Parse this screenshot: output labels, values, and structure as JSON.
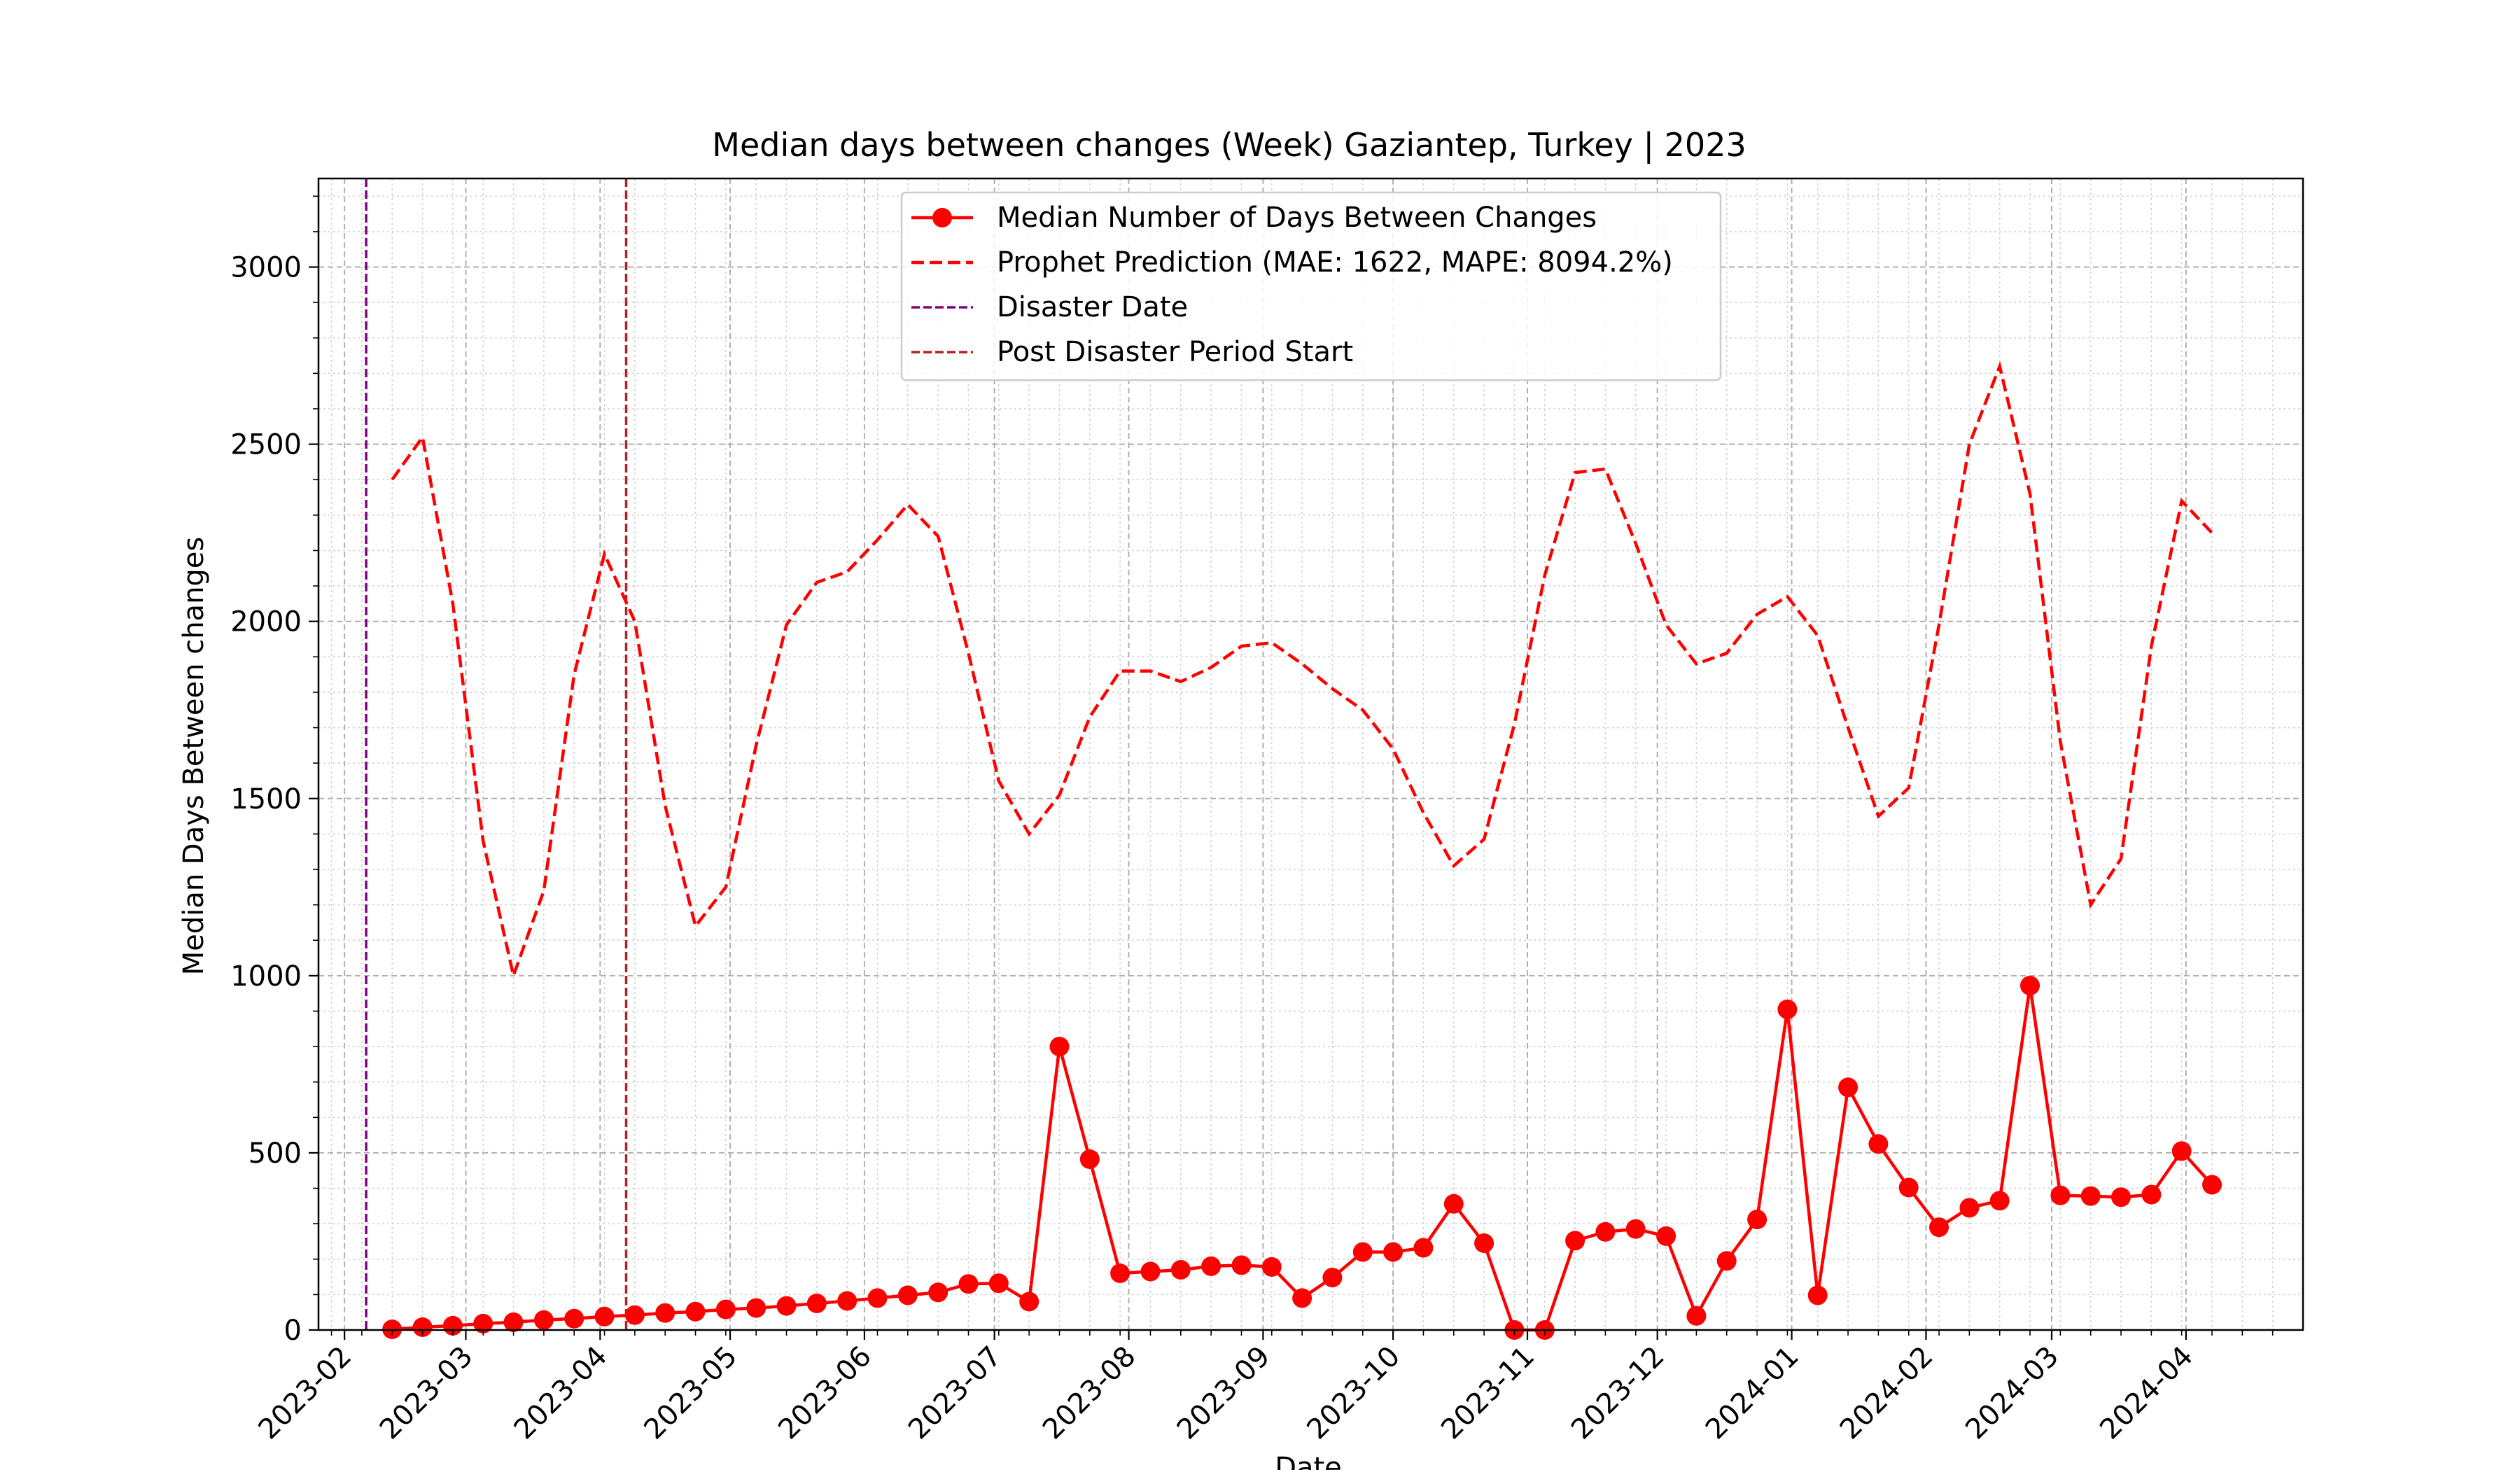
{
  "chart_data": {
    "type": "line",
    "title": "Median days between changes (Week) Gaziantep, Turkey | 2023",
    "xlabel": "Date",
    "ylabel": "Median Days Between changes",
    "x_axis": {
      "type": "date",
      "range": [
        "2023-01-26",
        "2024-04-28"
      ]
    },
    "ylim": [
      0,
      3250
    ],
    "y_ticks": [
      0,
      500,
      1000,
      1500,
      2000,
      2500,
      3000
    ],
    "x_ticks": [
      "2023-02",
      "2023-03",
      "2023-04",
      "2023-05",
      "2023-06",
      "2023-07",
      "2023-08",
      "2023-09",
      "2023-10",
      "2023-11",
      "2023-12",
      "2024-01",
      "2024-02",
      "2024-03",
      "2024-04"
    ],
    "grid": true,
    "legend_position": "upper center",
    "series": [
      {
        "name": "Median Number of Days Between Changes",
        "color": "#ff0000",
        "style": "solid-with-markers",
        "x": [
          "2023-02-12",
          "2023-02-19",
          "2023-02-26",
          "2023-03-05",
          "2023-03-12",
          "2023-03-19",
          "2023-03-26",
          "2023-04-02",
          "2023-04-09",
          "2023-04-16",
          "2023-04-23",
          "2023-04-30",
          "2023-05-07",
          "2023-05-14",
          "2023-05-21",
          "2023-05-28",
          "2023-06-04",
          "2023-06-11",
          "2023-06-18",
          "2023-06-25",
          "2023-07-02",
          "2023-07-09",
          "2023-07-16",
          "2023-07-23",
          "2023-07-30",
          "2023-08-06",
          "2023-08-13",
          "2023-08-20",
          "2023-08-27",
          "2023-09-03",
          "2023-09-10",
          "2023-09-17",
          "2023-09-24",
          "2023-10-01",
          "2023-10-08",
          "2023-10-15",
          "2023-10-22",
          "2023-10-29",
          "2023-11-05",
          "2023-11-12",
          "2023-11-19",
          "2023-11-26",
          "2023-12-03",
          "2023-12-10",
          "2023-12-17",
          "2023-12-24",
          "2023-12-31",
          "2024-01-07",
          "2024-01-14",
          "2024-01-21",
          "2024-01-28",
          "2024-02-04",
          "2024-02-11",
          "2024-02-18",
          "2024-02-25",
          "2024-03-03",
          "2024-03-10",
          "2024-03-17",
          "2024-03-24",
          "2024-03-31",
          "2024-04-07"
        ],
        "values": [
          2,
          8,
          12,
          18,
          22,
          28,
          32,
          38,
          42,
          48,
          52,
          58,
          62,
          68,
          75,
          82,
          90,
          98,
          106,
          130,
          132,
          80,
          800,
          482,
          160,
          165,
          170,
          180,
          183,
          178,
          90,
          148,
          220,
          220,
          232,
          356,
          245,
          0,
          0,
          252,
          277,
          285,
          265,
          40,
          195,
          312,
          905,
          98,
          685,
          525,
          402,
          290,
          345,
          365,
          972,
          380,
          378,
          375,
          382,
          505,
          410
        ]
      },
      {
        "name": "Prophet Prediction (MAE: 1622, MAPE: 8094.2%)",
        "color": "#ff0000",
        "style": "dashed",
        "x": [
          "2023-02-12",
          "2023-02-19",
          "2023-02-26",
          "2023-03-05",
          "2023-03-12",
          "2023-03-19",
          "2023-03-26",
          "2023-04-02",
          "2023-04-09",
          "2023-04-16",
          "2023-04-23",
          "2023-04-30",
          "2023-05-07",
          "2023-05-14",
          "2023-05-21",
          "2023-05-28",
          "2023-06-04",
          "2023-06-11",
          "2023-06-18",
          "2023-06-25",
          "2023-07-02",
          "2023-07-09",
          "2023-07-16",
          "2023-07-23",
          "2023-07-30",
          "2023-08-06",
          "2023-08-13",
          "2023-08-20",
          "2023-08-27",
          "2023-09-03",
          "2023-09-10",
          "2023-09-17",
          "2023-09-24",
          "2023-10-01",
          "2023-10-08",
          "2023-10-15",
          "2023-10-22",
          "2023-10-29",
          "2023-11-05",
          "2023-11-12",
          "2023-11-19",
          "2023-11-26",
          "2023-12-03",
          "2023-12-10",
          "2023-12-17",
          "2023-12-24",
          "2023-12-31",
          "2024-01-07",
          "2024-01-14",
          "2024-01-21",
          "2024-01-28",
          "2024-02-04",
          "2024-02-11",
          "2024-02-18",
          "2024-02-25",
          "2024-03-03",
          "2024-03-10",
          "2024-03-17",
          "2024-03-24",
          "2024-03-31",
          "2024-04-07"
        ],
        "values": [
          2400,
          2520,
          2050,
          1380,
          1000,
          1240,
          1850,
          2190,
          2000,
          1480,
          1140,
          1250,
          1650,
          1990,
          2110,
          2140,
          2230,
          2330,
          2240,
          1910,
          1550,
          1400,
          1510,
          1730,
          1860,
          1860,
          1830,
          1870,
          1930,
          1940,
          1880,
          1810,
          1750,
          1640,
          1460,
          1310,
          1385,
          1710,
          2130,
          2420,
          2430,
          2220,
          1990,
          1880,
          1910,
          2020,
          2070,
          1960,
          1700,
          1450,
          1530,
          1990,
          2500,
          2720,
          2360,
          1660,
          1200,
          1330,
          1930,
          2340,
          2250
        ]
      }
    ],
    "reference_lines": [
      {
        "name": "Disaster Date",
        "x": "2023-02-06",
        "color": "#800080",
        "style": "dashed"
      },
      {
        "name": "Post Disaster Period Start",
        "x": "2023-04-07",
        "color": "#b22222",
        "style": "dashed"
      }
    ]
  }
}
